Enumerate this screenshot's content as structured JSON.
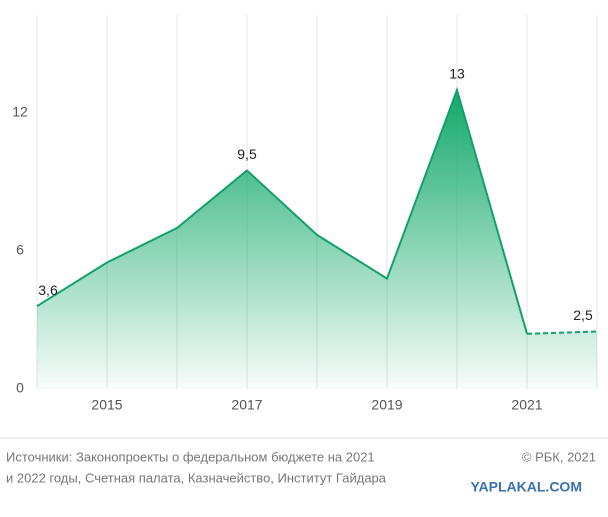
{
  "chart_data": {
    "type": "area",
    "x": [
      2014,
      2015,
      2016,
      2017,
      2018,
      2019,
      2020,
      2021,
      2022
    ],
    "values": [
      3.6,
      5.5,
      7.0,
      9.5,
      6.7,
      4.8,
      13,
      2.4,
      2.5
    ],
    "value_labels": [
      "3,6",
      null,
      null,
      "9,5",
      null,
      null,
      "13",
      null,
      "2,5"
    ],
    "color": "#14a06a",
    "dashed_from_x": 2021,
    "xlim": [
      2014,
      2022
    ],
    "xticks": [
      2015,
      2017,
      2019,
      2021
    ],
    "ylim": [
      0,
      16
    ],
    "yticks": [
      0,
      6,
      12
    ],
    "grid": true,
    "source": [
      "Источники: Законопроекты о федеральном бюджете на 2021",
      "и 2022 годы, Счетная палата, Казначейство, Институт Гайдара"
    ],
    "credit": "© РБК, 2021"
  },
  "watermark": "YAPLAKAL.COM"
}
